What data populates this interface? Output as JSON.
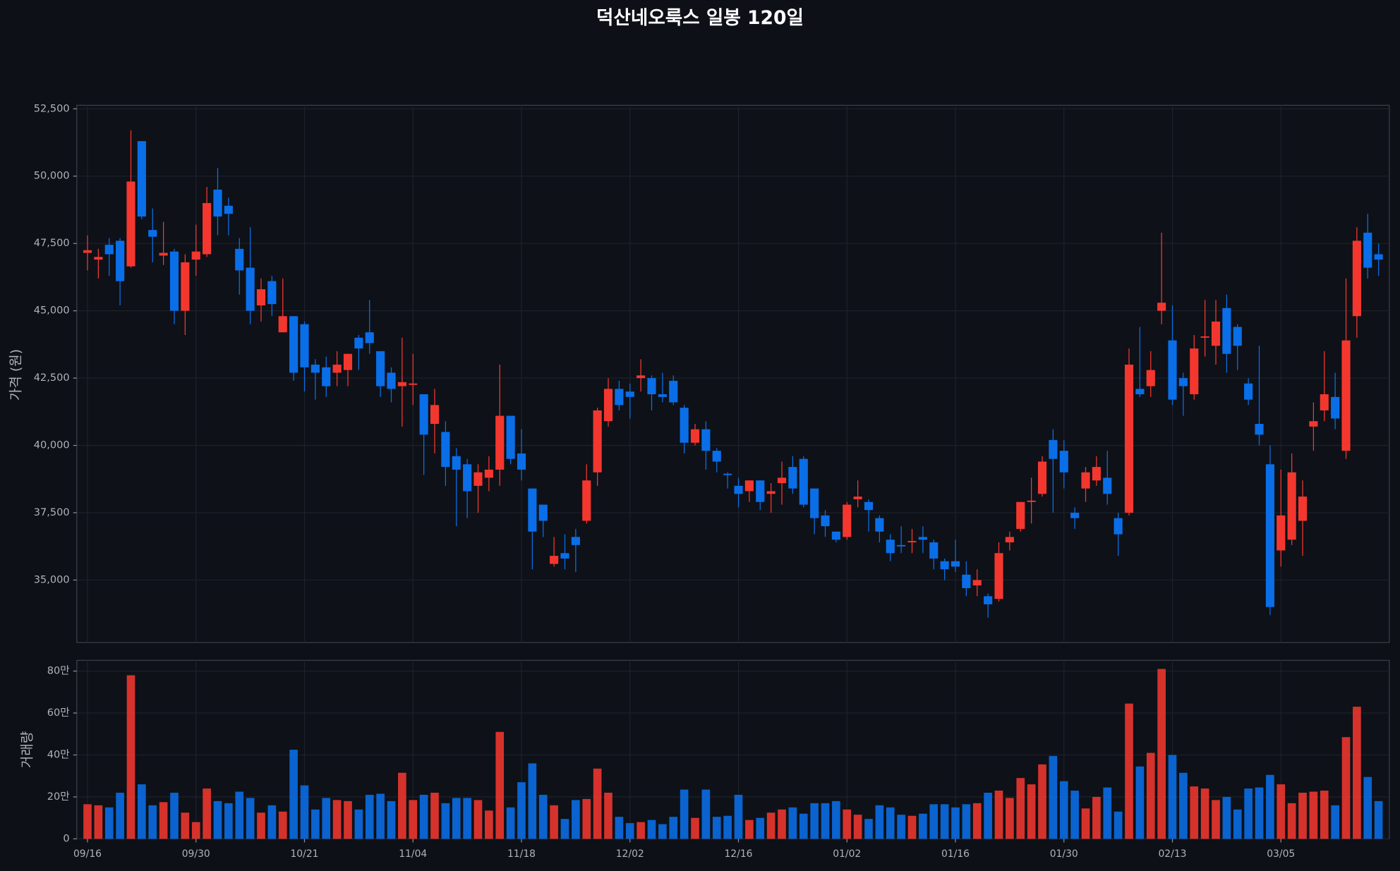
{
  "chart_data": {
    "type": "candlestick",
    "title": "덕산네오룩스 일봉 120일",
    "y_label": "가격 (원)",
    "volume_label": "거래량",
    "up_color": "#f3372f",
    "down_color": "#0a6ee8",
    "grid": true,
    "categories": [
      "09/16",
      null,
      null,
      null,
      null,
      null,
      null,
      null,
      null,
      null,
      "09/30",
      null,
      null,
      null,
      null,
      null,
      null,
      null,
      null,
      null,
      "10/21",
      null,
      null,
      null,
      null,
      null,
      null,
      null,
      null,
      null,
      "11/04",
      null,
      null,
      null,
      null,
      null,
      null,
      null,
      null,
      null,
      "11/18",
      null,
      null,
      null,
      null,
      null,
      null,
      null,
      null,
      null,
      "12/02",
      null,
      null,
      null,
      null,
      null,
      null,
      null,
      null,
      null,
      "12/16",
      null,
      null,
      null,
      null,
      null,
      null,
      null,
      null,
      null,
      "01/02",
      null,
      null,
      null,
      null,
      null,
      null,
      null,
      null,
      null,
      "01/16",
      null,
      null,
      null,
      null,
      null,
      null,
      null,
      null,
      null,
      "01/30",
      null,
      null,
      null,
      null,
      null,
      null,
      null,
      null,
      null,
      "02/13",
      null,
      null,
      null,
      null,
      null,
      null,
      null,
      null,
      null,
      "03/05",
      null,
      null,
      null,
      null,
      null,
      null,
      null,
      null,
      null
    ],
    "open": [
      47150,
      46900,
      47450,
      47600,
      46650,
      51300,
      48000,
      47050,
      47200,
      45000,
      46900,
      47100,
      49500,
      48900,
      47300,
      46600,
      45200,
      46100,
      44200,
      44800,
      44500,
      43000,
      42900,
      42700,
      42800,
      44000,
      44200,
      43500,
      42700,
      42200,
      42250,
      41900,
      40800,
      40500,
      39600,
      39300,
      38500,
      38800,
      39100,
      41100,
      39700,
      38400,
      37800,
      35600,
      36000,
      36600,
      37200,
      39000,
      40900,
      42100,
      42000,
      42500,
      42500,
      41900,
      42400,
      41400,
      40100,
      40600,
      39800,
      38950,
      38500,
      38300,
      38700,
      38200,
      38600,
      39200,
      39500,
      38400,
      37400,
      36800,
      36600,
      38000,
      37900,
      37300,
      36500,
      36300,
      36400,
      36600,
      36400,
      35700,
      35700,
      35200,
      34800,
      34400,
      34300,
      36400,
      36900,
      37900,
      38200,
      40200,
      39800,
      37500,
      38400,
      38700,
      38800,
      37300,
      37500,
      42100,
      42200,
      45000,
      43900,
      42500,
      41900,
      44000,
      43700,
      45100,
      44400,
      42300,
      40800,
      39300,
      36100,
      36500,
      37200,
      40700,
      41300,
      41800,
      39800,
      44800,
      47900,
      47100
    ],
    "high": [
      47800,
      47300,
      47700,
      47700,
      51700,
      51300,
      48800,
      48300,
      47300,
      47100,
      48200,
      49600,
      50300,
      49200,
      47700,
      48100,
      46200,
      46300,
      46200,
      44800,
      44600,
      43200,
      43300,
      43500,
      43400,
      44100,
      45400,
      43500,
      42900,
      44000,
      43400,
      41900,
      42100,
      40900,
      39900,
      39500,
      39300,
      39600,
      43000,
      41100,
      40600,
      38400,
      37800,
      36600,
      36700,
      36900,
      39300,
      41400,
      42500,
      42400,
      42300,
      43200,
      42600,
      42700,
      42600,
      41500,
      40800,
      40900,
      39900,
      39000,
      38800,
      38700,
      38700,
      38600,
      39400,
      39600,
      39600,
      38400,
      37600,
      36800,
      37900,
      38700,
      38000,
      37400,
      36700,
      37000,
      36900,
      37000,
      36500,
      35800,
      36500,
      35700,
      35400,
      34500,
      36400,
      36800,
      37900,
      38800,
      39600,
      40600,
      40200,
      37700,
      39200,
      39600,
      39800,
      37500,
      43600,
      44400,
      43500,
      47900,
      45200,
      42700,
      44100,
      45400,
      45400,
      45600,
      44500,
      42500,
      43700,
      40000,
      39100,
      39700,
      38700,
      41600,
      43500,
      42700,
      46200,
      48100,
      48600,
      47500
    ],
    "low": [
      46500,
      46200,
      46300,
      45200,
      46600,
      48400,
      46800,
      46700,
      44500,
      44100,
      46300,
      47000,
      47800,
      47800,
      45600,
      44500,
      44600,
      44800,
      44200,
      42400,
      42000,
      41700,
      41800,
      42200,
      42200,
      42800,
      43400,
      41800,
      41600,
      40700,
      41500,
      38900,
      39700,
      38500,
      37000,
      37300,
      37500,
      38300,
      38500,
      39300,
      38700,
      35400,
      36600,
      35500,
      35400,
      35300,
      37100,
      38500,
      40700,
      41300,
      41000,
      42000,
      41300,
      41600,
      41500,
      39700,
      40000,
      39100,
      39000,
      38400,
      37700,
      37900,
      37600,
      37500,
      37800,
      38200,
      37700,
      36700,
      36600,
      36400,
      36500,
      37700,
      36800,
      36400,
      35700,
      36000,
      36000,
      36000,
      35400,
      35000,
      35300,
      34400,
      34400,
      33600,
      34200,
      36100,
      36800,
      37100,
      38100,
      37500,
      38400,
      36900,
      37900,
      38500,
      37800,
      35900,
      37400,
      41800,
      41800,
      44500,
      41500,
      41100,
      41700,
      43300,
      43000,
      42700,
      42800,
      41500,
      40000,
      33700,
      35500,
      36300,
      35900,
      39800,
      40900,
      40600,
      39500,
      44000,
      46200,
      46300
    ],
    "close": [
      47250,
      47000,
      47100,
      46100,
      49800,
      48500,
      47750,
      47150,
      45000,
      46800,
      47200,
      49000,
      48500,
      48600,
      46500,
      45000,
      45800,
      45250,
      44800,
      42700,
      42900,
      42700,
      42200,
      43000,
      43400,
      43600,
      43800,
      42200,
      42100,
      42350,
      42300,
      40400,
      41500,
      39200,
      39100,
      38300,
      39000,
      39100,
      41100,
      39500,
      39100,
      36800,
      37200,
      35900,
      35800,
      36300,
      38700,
      41300,
      42100,
      41500,
      41800,
      42600,
      41900,
      41800,
      41600,
      40100,
      40600,
      39800,
      39400,
      38900,
      38200,
      38700,
      37900,
      38300,
      38800,
      38400,
      37800,
      37300,
      37000,
      36500,
      37800,
      38100,
      37600,
      36800,
      36000,
      36250,
      36450,
      36500,
      35800,
      35400,
      35500,
      34700,
      35000,
      34100,
      36000,
      36600,
      37900,
      37950,
      39400,
      39500,
      39000,
      37300,
      39000,
      39200,
      38200,
      36700,
      43000,
      41900,
      42800,
      45300,
      41700,
      42200,
      43600,
      44050,
      44600,
      43400,
      43700,
      41700,
      40400,
      34000,
      37400,
      39000,
      38100,
      40900,
      41900,
      41000,
      43900,
      47600,
      46600,
      46900
    ],
    "volume": [
      165000,
      160000,
      150000,
      220000,
      780000,
      260000,
      160000,
      175000,
      220000,
      125000,
      80000,
      240000,
      180000,
      170000,
      225000,
      195000,
      125000,
      160000,
      130000,
      425000,
      255000,
      140000,
      195000,
      185000,
      180000,
      140000,
      210000,
      215000,
      180000,
      315000,
      185000,
      210000,
      220000,
      170000,
      195000,
      195000,
      185000,
      135000,
      510000,
      150000,
      270000,
      360000,
      210000,
      160000,
      95000,
      185000,
      190000,
      335000,
      220000,
      105000,
      75000,
      80000,
      90000,
      70000,
      105000,
      235000,
      100000,
      235000,
      105000,
      110000,
      210000,
      90000,
      100000,
      125000,
      140000,
      150000,
      120000,
      170000,
      170000,
      180000,
      140000,
      115000,
      95000,
      160000,
      150000,
      115000,
      110000,
      120000,
      165000,
      165000,
      150000,
      165000,
      170000,
      220000,
      230000,
      195000,
      290000,
      260000,
      355000,
      395000,
      275000,
      230000,
      145000,
      200000,
      245000,
      130000,
      645000,
      345000,
      410000,
      810000,
      400000,
      315000,
      250000,
      240000,
      185000,
      200000,
      140000,
      240000,
      245000,
      305000,
      260000,
      170000,
      220000,
      225000,
      230000,
      160000,
      485000,
      630000,
      295000,
      180000
    ],
    "ylim": [
      32680,
      52630
    ],
    "yticks": [
      {
        "value": 35000,
        "label": "35,000"
      },
      {
        "value": 37500,
        "label": "37,500"
      },
      {
        "value": 40000,
        "label": "40,000"
      },
      {
        "value": 42500,
        "label": "42,500"
      },
      {
        "value": 45000,
        "label": "45,000"
      },
      {
        "value": 47500,
        "label": "47,500"
      },
      {
        "value": 50000,
        "label": "50,000"
      },
      {
        "value": 52500,
        "label": "52,500"
      }
    ],
    "volume_ylim": [
      0,
      851000
    ],
    "volume_yticks": [
      0,
      {
        "value": 200000,
        "label": "20만"
      },
      {
        "value": 400000,
        "label": "40만"
      },
      {
        "value": 600000,
        "label": "60만"
      },
      {
        "value": 800000,
        "label": "80만"
      }
    ]
  }
}
